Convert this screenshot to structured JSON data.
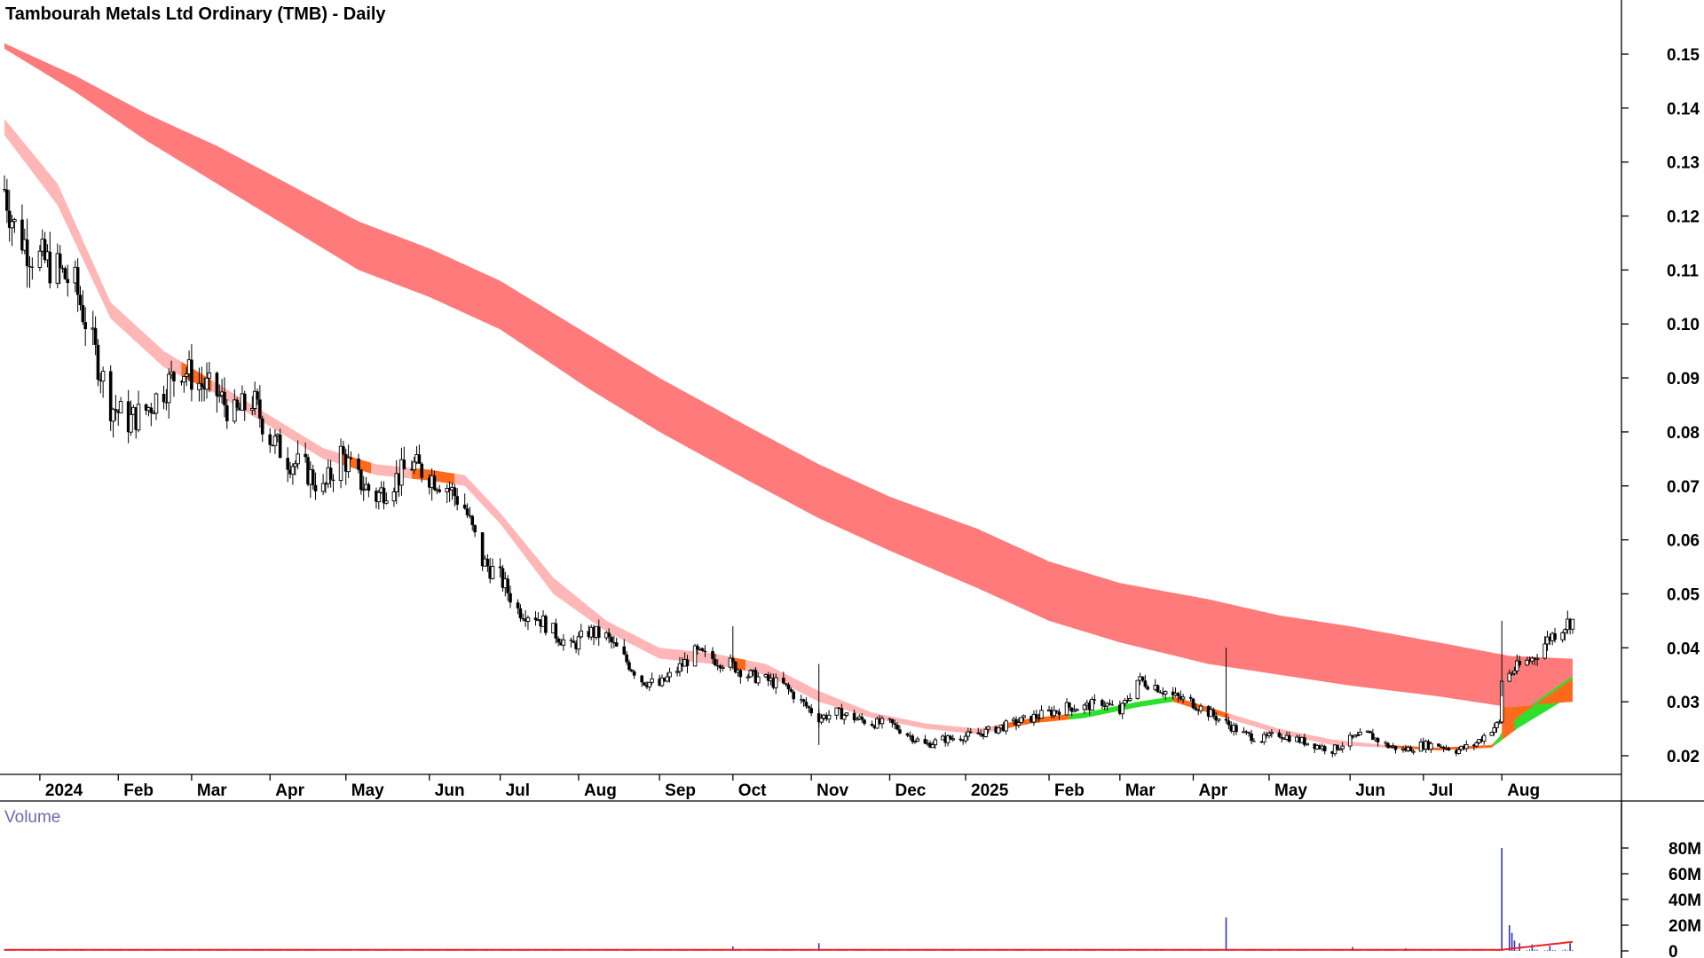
{
  "chart_data": [
    {
      "type": "candlestick",
      "title": "Tambourah Metals Ltd Ordinary (TMB) - Daily",
      "ylim": [
        0.015,
        0.16
      ],
      "yticks": [
        "0.15",
        "0.14",
        "0.13",
        "0.12",
        "0.11",
        "0.10",
        "0.09",
        "0.08",
        "0.07",
        "0.06",
        "0.05",
        "0.04",
        "0.03",
        "0.02"
      ],
      "xticks": [
        "2024",
        "Feb",
        "Mar",
        "Apr",
        "May",
        "Jun",
        "Jul",
        "Aug",
        "Sep",
        "Oct",
        "Nov",
        "Dec",
        "2025",
        "Feb",
        "Mar",
        "Apr",
        "May",
        "Jun",
        "Jul",
        "Aug"
      ],
      "x_start": "2023-12-18",
      "x_end": "2025-08-29",
      "price_keyframes": [
        [
          "2023-12-18",
          0.125
        ],
        [
          "2023-12-22",
          0.118
        ],
        [
          "2023-12-29",
          0.113
        ],
        [
          "2024-01-08",
          0.11
        ],
        [
          "2024-01-15",
          0.107
        ],
        [
          "2024-01-22",
          0.096
        ],
        [
          "2024-01-29",
          0.085
        ],
        [
          "2024-02-05",
          0.082
        ],
        [
          "2024-02-12",
          0.084
        ],
        [
          "2024-02-19",
          0.088
        ],
        [
          "2024-02-26",
          0.092
        ],
        [
          "2024-03-04",
          0.089
        ],
        [
          "2024-03-11",
          0.087
        ],
        [
          "2024-03-18",
          0.083
        ],
        [
          "2024-03-25",
          0.086
        ],
        [
          "2024-04-01",
          0.079
        ],
        [
          "2024-04-08",
          0.075
        ],
        [
          "2024-04-15",
          0.073
        ],
        [
          "2024-04-22",
          0.069
        ],
        [
          "2024-04-29",
          0.076
        ],
        [
          "2024-05-06",
          0.071
        ],
        [
          "2024-05-13",
          0.068
        ],
        [
          "2024-05-20",
          0.071
        ],
        [
          "2024-05-27",
          0.074
        ],
        [
          "2024-06-03",
          0.072
        ],
        [
          "2024-06-10",
          0.07
        ],
        [
          "2024-06-17",
          0.066
        ],
        [
          "2024-06-24",
          0.056
        ],
        [
          "2024-07-01",
          0.053
        ],
        [
          "2024-07-08",
          0.047
        ],
        [
          "2024-07-15",
          0.046
        ],
        [
          "2024-07-22",
          0.043
        ],
        [
          "2024-07-29",
          0.04
        ],
        [
          "2024-08-05",
          0.043
        ],
        [
          "2024-08-12",
          0.042
        ],
        [
          "2024-08-19",
          0.038
        ],
        [
          "2024-08-26",
          0.034
        ],
        [
          "2024-09-02",
          0.033
        ],
        [
          "2024-09-09",
          0.036
        ],
        [
          "2024-09-16",
          0.039
        ],
        [
          "2024-09-23",
          0.038
        ],
        [
          "2024-09-30",
          0.037
        ],
        [
          "2024-10-07",
          0.035
        ],
        [
          "2024-10-14",
          0.034
        ],
        [
          "2024-10-21",
          0.033
        ],
        [
          "2024-10-28",
          0.03
        ],
        [
          "2024-11-04",
          0.027
        ],
        [
          "2024-11-11",
          0.028
        ],
        [
          "2024-11-18",
          0.027
        ],
        [
          "2024-11-25",
          0.026
        ],
        [
          "2024-12-02",
          0.026
        ],
        [
          "2024-12-09",
          0.024
        ],
        [
          "2024-12-16",
          0.022
        ],
        [
          "2024-12-23",
          0.023
        ],
        [
          "2025-01-06",
          0.024
        ],
        [
          "2025-01-13",
          0.025
        ],
        [
          "2025-01-20",
          0.026
        ],
        [
          "2025-01-27",
          0.027
        ],
        [
          "2025-02-03",
          0.028
        ],
        [
          "2025-02-10",
          0.029
        ],
        [
          "2025-02-17",
          0.029
        ],
        [
          "2025-02-24",
          0.03
        ],
        [
          "2025-03-03",
          0.028
        ],
        [
          "2025-03-10",
          0.034
        ],
        [
          "2025-03-17",
          0.033
        ],
        [
          "2025-03-24",
          0.031
        ],
        [
          "2025-03-31",
          0.03
        ],
        [
          "2025-04-07",
          0.028
        ],
        [
          "2025-04-14",
          0.026
        ],
        [
          "2025-04-21",
          0.024
        ],
        [
          "2025-04-28",
          0.023
        ],
        [
          "2025-05-05",
          0.024
        ],
        [
          "2025-05-12",
          0.023
        ],
        [
          "2025-05-19",
          0.022
        ],
        [
          "2025-05-26",
          0.021
        ],
        [
          "2025-06-02",
          0.023
        ],
        [
          "2025-06-09",
          0.024
        ],
        [
          "2025-06-16",
          0.022
        ],
        [
          "2025-06-23",
          0.021
        ],
        [
          "2025-06-30",
          0.022
        ],
        [
          "2025-07-07",
          0.022
        ],
        [
          "2025-07-14",
          0.021
        ],
        [
          "2025-07-21",
          0.022
        ],
        [
          "2025-07-28",
          0.025
        ],
        [
          "2025-07-31",
          0.026
        ],
        [
          "2025-08-01",
          0.034
        ],
        [
          "2025-08-06",
          0.036
        ],
        [
          "2025-08-13",
          0.038
        ],
        [
          "2025-08-20",
          0.042
        ],
        [
          "2025-08-28",
          0.045
        ]
      ],
      "short_ribbon_keyframes": [
        [
          "2023-12-18",
          0.138,
          0.135
        ],
        [
          "2024-01-08",
          0.126,
          0.122
        ],
        [
          "2024-01-29",
          0.104,
          0.101
        ],
        [
          "2024-02-19",
          0.095,
          0.092
        ],
        [
          "2024-03-11",
          0.089,
          0.087
        ],
        [
          "2024-04-01",
          0.083,
          0.081
        ],
        [
          "2024-04-22",
          0.077,
          0.075
        ],
        [
          "2024-05-13",
          0.074,
          0.072
        ],
        [
          "2024-06-03",
          0.073,
          0.071
        ],
        [
          "2024-06-17",
          0.072,
          0.07
        ],
        [
          "2024-07-01",
          0.065,
          0.063
        ],
        [
          "2024-07-22",
          0.053,
          0.05
        ],
        [
          "2024-08-12",
          0.045,
          0.043
        ],
        [
          "2024-09-02",
          0.04,
          0.038
        ],
        [
          "2024-09-23",
          0.039,
          0.037
        ],
        [
          "2024-10-14",
          0.037,
          0.035
        ],
        [
          "2024-11-04",
          0.032,
          0.03
        ],
        [
          "2024-11-25",
          0.028,
          0.027
        ],
        [
          "2024-12-16",
          0.026,
          0.025
        ],
        [
          "2025-01-06",
          0.025,
          0.024
        ],
        [
          "2025-01-27",
          0.027,
          0.026
        ],
        [
          "2025-02-17",
          0.028,
          0.027
        ],
        [
          "2025-03-10",
          0.03,
          0.029
        ],
        [
          "2025-03-24",
          0.031,
          0.03
        ],
        [
          "2025-04-14",
          0.028,
          0.027
        ],
        [
          "2025-05-05",
          0.025,
          0.024
        ],
        [
          "2025-05-26",
          0.023,
          0.022
        ],
        [
          "2025-06-16",
          0.022,
          0.0215
        ],
        [
          "2025-07-07",
          0.0215,
          0.021
        ],
        [
          "2025-07-28",
          0.022,
          0.0215
        ],
        [
          "2025-08-07",
          0.027,
          0.025
        ],
        [
          "2025-08-28",
          0.034,
          0.031
        ]
      ],
      "long_ribbon_keyframes": [
        [
          "2023-12-18",
          0.152,
          0.151
        ],
        [
          "2024-01-15",
          0.146,
          0.143
        ],
        [
          "2024-02-12",
          0.139,
          0.134
        ],
        [
          "2024-03-11",
          0.133,
          0.126
        ],
        [
          "2024-04-08",
          0.126,
          0.118
        ],
        [
          "2024-05-06",
          0.119,
          0.11
        ],
        [
          "2024-06-03",
          0.114,
          0.105
        ],
        [
          "2024-07-01",
          0.108,
          0.099
        ],
        [
          "2024-08-05",
          0.098,
          0.088
        ],
        [
          "2024-09-02",
          0.09,
          0.08
        ],
        [
          "2024-10-07",
          0.081,
          0.071
        ],
        [
          "2024-11-04",
          0.074,
          0.064
        ],
        [
          "2024-12-02",
          0.068,
          0.058
        ],
        [
          "2025-01-06",
          0.062,
          0.051
        ],
        [
          "2025-02-03",
          0.056,
          0.045
        ],
        [
          "2025-03-03",
          0.052,
          0.041
        ],
        [
          "2025-04-07",
          0.049,
          0.037
        ],
        [
          "2025-05-05",
          0.046,
          0.035
        ],
        [
          "2025-06-02",
          0.044,
          0.033
        ],
        [
          "2025-07-07",
          0.041,
          0.031
        ],
        [
          "2025-08-04",
          0.0385,
          0.029
        ],
        [
          "2025-08-28",
          0.038,
          0.03
        ]
      ],
      "colors": {
        "long_ribbon": "#ff7b7b",
        "short_ribbon_bear": "#ffb6b6",
        "short_ribbon_cross": "#ff6a1a",
        "short_ribbon_bull": "#2de02d",
        "candle": "#000000",
        "volume": "#3333bb",
        "volume_ma": "#ee2222"
      }
    },
    {
      "type": "bar",
      "title": "Volume",
      "ylim": [
        0,
        84000000
      ],
      "yticks": [
        "80M",
        "60M",
        "40M",
        "20M",
        "0"
      ],
      "spikes": [
        [
          "2024-10-01",
          3500000
        ],
        [
          "2024-11-04",
          6000000
        ],
        [
          "2025-04-14",
          26000000
        ],
        [
          "2025-06-03",
          3000000
        ],
        [
          "2025-06-24",
          2000000
        ],
        [
          "2025-08-01",
          80000000
        ],
        [
          "2025-08-04",
          20000000
        ],
        [
          "2025-08-05",
          14000000
        ],
        [
          "2025-08-06",
          8000000
        ],
        [
          "2025-08-08",
          6000000
        ],
        [
          "2025-08-13",
          5000000
        ],
        [
          "2025-08-20",
          4000000
        ],
        [
          "2025-08-28",
          6000000
        ]
      ],
      "base_level": 800000
    }
  ]
}
